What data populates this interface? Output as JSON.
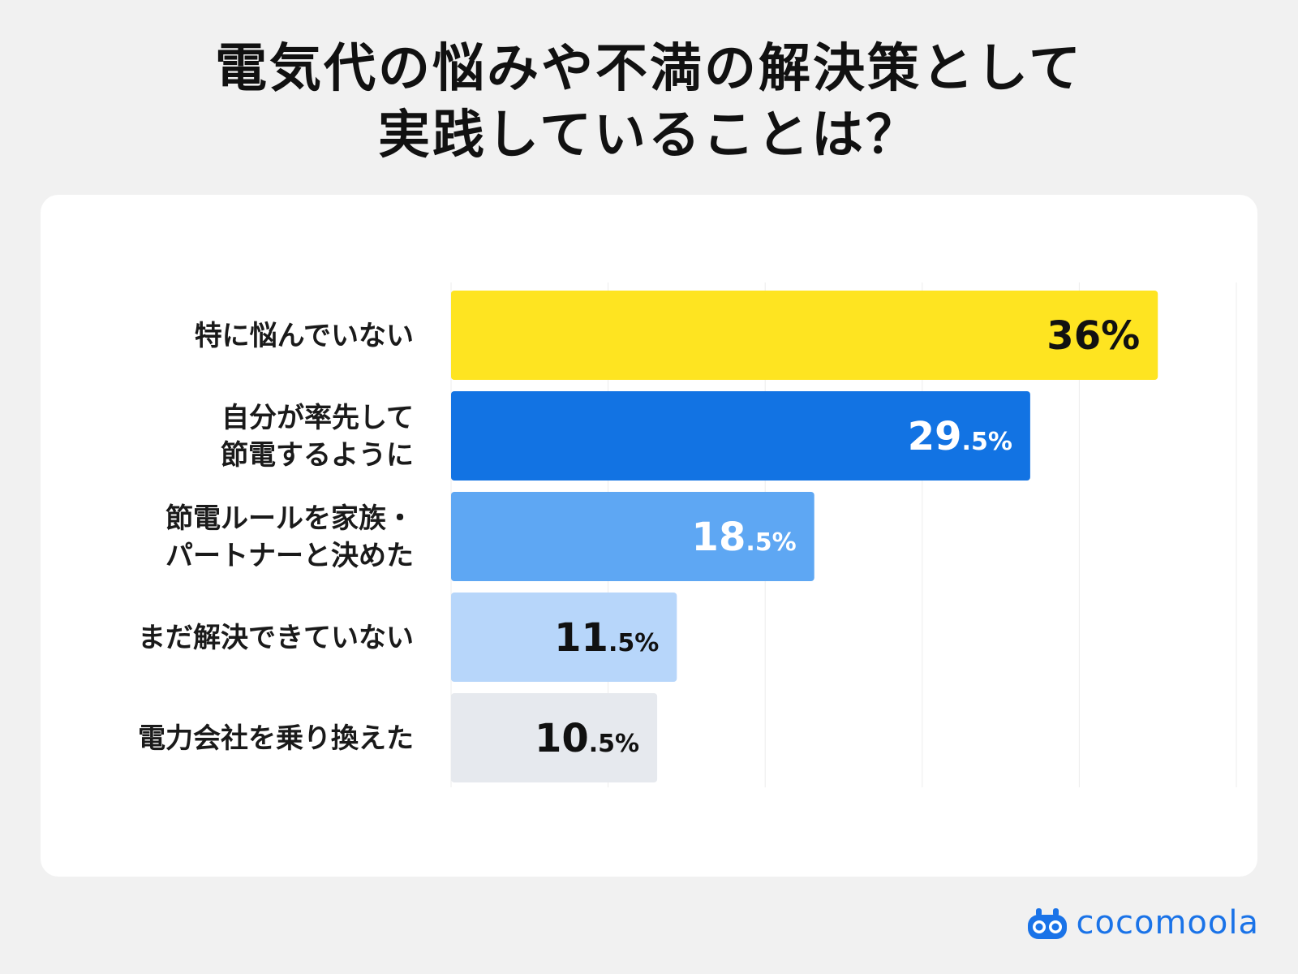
{
  "title": {
    "line1": "電気代の悩みや不満の解決策として",
    "line2": "実践していることは？"
  },
  "brand": {
    "name": "cocomoola",
    "icon": "cocomoola-logo-icon",
    "color": "#1a73e8"
  },
  "chart_data": {
    "type": "bar",
    "orientation": "horizontal",
    "title": "電気代の悩みや不満の解決策として実践していることは？",
    "xlim": [
      0,
      40
    ],
    "grid": true,
    "categories": [
      [
        "特に悩んでいない"
      ],
      [
        "自分が率先して",
        "節電するように"
      ],
      [
        "節電ルールを家族・",
        "パートナーと決めた"
      ],
      [
        "まだ解決できていない"
      ],
      [
        "電力会社を乗り換えた"
      ]
    ],
    "values": [
      36,
      29.5,
      18.5,
      11.5,
      10.5
    ],
    "labels": [
      {
        "main": "36",
        "sub": "%"
      },
      {
        "main": "29",
        "sub": ".5%"
      },
      {
        "main": "18",
        "sub": ".5%"
      },
      {
        "main": "11",
        "sub": ".5%"
      },
      {
        "main": "10",
        "sub": ".5%"
      }
    ],
    "colors": [
      "#fee421",
      "#1273e3",
      "#5ea7f3",
      "#b7d6fa",
      "#e6e9ee"
    ],
    "label_colors": [
      "#111111",
      "#ffffff",
      "#ffffff",
      "#111111",
      "#111111"
    ]
  }
}
